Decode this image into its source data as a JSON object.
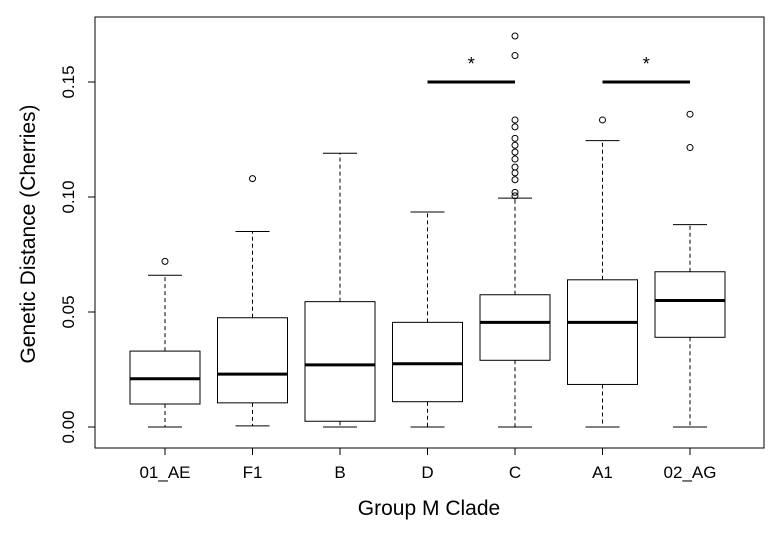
{
  "chart_data": {
    "type": "box",
    "xlabel": "Group M Clade",
    "ylabel": "Genetic Distance (Cherries)",
    "ylim": [
      0,
      0.175
    ],
    "yticks": [
      "0.00",
      "0.05",
      "0.10",
      "0.15"
    ],
    "grid": false,
    "categories": [
      "01_AE",
      "F1",
      "B",
      "D",
      "C",
      "A1",
      "02_AG"
    ],
    "boxes": [
      {
        "category": "01_AE",
        "whisker_low": 0.0,
        "q1": 0.01,
        "median": 0.021,
        "q3": 0.033,
        "whisker_high": 0.066,
        "outliers": [
          0.072
        ]
      },
      {
        "category": "F1",
        "whisker_low": 0.0005,
        "q1": 0.0105,
        "median": 0.023,
        "q3": 0.0475,
        "whisker_high": 0.085,
        "outliers": [
          0.108
        ]
      },
      {
        "category": "B",
        "whisker_low": 0.0,
        "q1": 0.0025,
        "median": 0.027,
        "q3": 0.0545,
        "whisker_high": 0.119,
        "outliers": []
      },
      {
        "category": "D",
        "whisker_low": 0.0,
        "q1": 0.011,
        "median": 0.0275,
        "q3": 0.0455,
        "whisker_high": 0.0935,
        "outliers": []
      },
      {
        "category": "C",
        "whisker_low": 0.0,
        "q1": 0.029,
        "median": 0.0455,
        "q3": 0.0575,
        "whisker_high": 0.0995,
        "outliers": [
          0.1005,
          0.102,
          0.1075,
          0.1105,
          0.113,
          0.1165,
          0.1195,
          0.1225,
          0.1255,
          0.1305,
          0.1335,
          0.1615,
          0.17
        ]
      },
      {
        "category": "A1",
        "whisker_low": 0.0,
        "q1": 0.0185,
        "median": 0.0455,
        "q3": 0.064,
        "whisker_high": 0.1245,
        "outliers": [
          0.1335
        ]
      },
      {
        "category": "02_AG",
        "whisker_low": 0.0,
        "q1": 0.039,
        "median": 0.055,
        "q3": 0.0675,
        "whisker_high": 0.088,
        "outliers": [
          0.1215,
          0.136
        ]
      }
    ],
    "annotations": [
      {
        "category": "D",
        "level": 0.15,
        "label": "*"
      },
      {
        "category": "A1",
        "level": 0.15,
        "label": "*"
      }
    ]
  }
}
